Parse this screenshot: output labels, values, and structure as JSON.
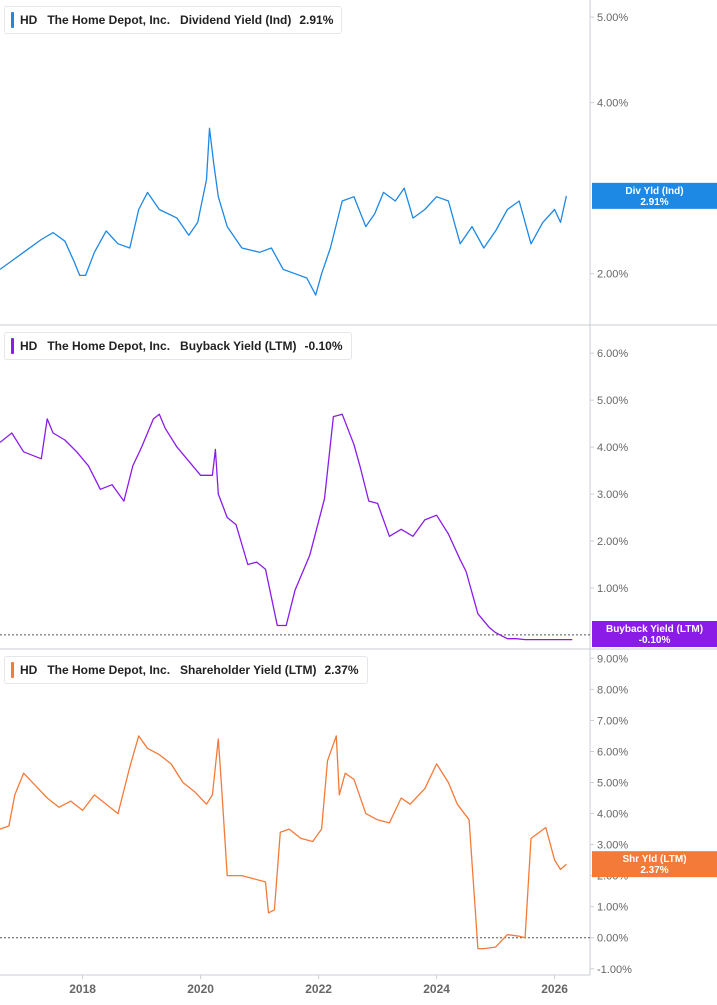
{
  "panels": [
    {
      "ticker": "HD",
      "company": "The Home Depot, Inc.",
      "metric": "Dividend Yield (Ind)",
      "value": "2.91%",
      "color": "#1e88e5",
      "badge": {
        "label": "Div Yld (Ind)",
        "value": "2.91%"
      }
    },
    {
      "ticker": "HD",
      "company": "The Home Depot, Inc.",
      "metric": "Buyback Yield (LTM)",
      "value": "-0.10%",
      "color": "#8b1ce8",
      "badge": {
        "label": "Buyback Yield (LTM)",
        "value": "-0.10%"
      }
    },
    {
      "ticker": "HD",
      "company": "The Home Depot, Inc.",
      "metric": "Shareholder Yield (LTM)",
      "value": "2.37%",
      "color": "#f47a3a",
      "badge": {
        "label": "Shr Yld (LTM)",
        "value": "2.37%"
      }
    }
  ],
  "chart_data": [
    {
      "type": "line",
      "title": "HD The Home Depot, Inc. Dividend Yield (Ind) 2.91%",
      "series": [
        {
          "name": "Dividend Yield (Ind)",
          "color": "#1e88e5",
          "x": [
            2016.6,
            2016.8,
            2017.0,
            2017.3,
            2017.5,
            2017.7,
            2017.85,
            2017.95,
            2018.05,
            2018.2,
            2018.4,
            2018.6,
            2018.8,
            2018.95,
            2019.1,
            2019.3,
            2019.6,
            2019.8,
            2019.95,
            2020.1,
            2020.15,
            2020.22,
            2020.3,
            2020.45,
            2020.7,
            2021.0,
            2021.2,
            2021.4,
            2021.6,
            2021.8,
            2021.95,
            2022.05,
            2022.2,
            2022.4,
            2022.6,
            2022.8,
            2022.95,
            2023.1,
            2023.3,
            2023.45,
            2023.6,
            2023.8,
            2024.0,
            2024.2,
            2024.4,
            2024.6,
            2024.8,
            2025.0,
            2025.2,
            2025.4,
            2025.6,
            2025.8,
            2026.0,
            2026.1,
            2026.2
          ],
          "y": [
            2.05,
            2.15,
            2.25,
            2.4,
            2.48,
            2.38,
            2.15,
            1.98,
            1.98,
            2.25,
            2.5,
            2.35,
            2.3,
            2.75,
            2.95,
            2.75,
            2.65,
            2.45,
            2.6,
            3.1,
            3.7,
            3.3,
            2.9,
            2.55,
            2.3,
            2.25,
            2.3,
            2.05,
            2.0,
            1.95,
            1.75,
            2.0,
            2.3,
            2.85,
            2.9,
            2.55,
            2.7,
            2.95,
            2.85,
            3.0,
            2.65,
            2.75,
            2.9,
            2.85,
            2.35,
            2.55,
            2.3,
            2.5,
            2.75,
            2.85,
            2.35,
            2.6,
            2.75,
            2.6,
            2.91
          ]
        }
      ],
      "ylim": [
        1.4,
        5.2
      ],
      "y_ticks": [
        "2.00%",
        "4.00%",
        "5.00%"
      ],
      "grid": false,
      "legend": "top-left"
    },
    {
      "type": "line",
      "title": "HD The Home Depot, Inc. Buyback Yield (LTM) -0.10%",
      "series": [
        {
          "name": "Buyback Yield (LTM)",
          "color": "#8b1ce8",
          "x": [
            2016.6,
            2016.8,
            2017.0,
            2017.3,
            2017.4,
            2017.5,
            2017.7,
            2017.9,
            2018.1,
            2018.3,
            2018.5,
            2018.7,
            2018.85,
            2019.0,
            2019.2,
            2019.3,
            2019.4,
            2019.6,
            2019.8,
            2020.0,
            2020.2,
            2020.25,
            2020.3,
            2020.45,
            2020.6,
            2020.8,
            2020.95,
            2021.1,
            2021.3,
            2021.45,
            2021.6,
            2021.85,
            2022.1,
            2022.25,
            2022.4,
            2022.6,
            2022.7,
            2022.85,
            2023.0,
            2023.2,
            2023.4,
            2023.6,
            2023.8,
            2024.0,
            2024.2,
            2024.4,
            2024.5,
            2024.7,
            2024.9,
            2025.0,
            2025.2,
            2025.35,
            2025.5,
            2026.0,
            2026.3
          ],
          "y": [
            4.1,
            4.3,
            3.9,
            3.75,
            4.6,
            4.3,
            4.15,
            3.9,
            3.6,
            3.1,
            3.2,
            2.85,
            3.6,
            4.0,
            4.6,
            4.7,
            4.4,
            4.0,
            3.7,
            3.4,
            3.4,
            3.95,
            3.0,
            2.5,
            2.35,
            1.5,
            1.55,
            1.4,
            0.2,
            0.2,
            0.95,
            1.7,
            2.9,
            4.65,
            4.7,
            4.05,
            3.6,
            2.85,
            2.8,
            2.1,
            2.25,
            2.1,
            2.45,
            2.55,
            2.15,
            1.6,
            1.35,
            0.45,
            0.15,
            0.05,
            -0.08,
            -0.08,
            -0.1,
            -0.1,
            -0.1
          ]
        }
      ],
      "ylim": [
        -0.3,
        6.6
      ],
      "y_ticks": [
        "1.00%",
        "2.00%",
        "3.00%",
        "4.00%",
        "5.00%",
        "6.00%"
      ],
      "grid": false,
      "legend": "top-left"
    },
    {
      "type": "line",
      "title": "HD The Home Depot, Inc. Shareholder Yield (LTM) 2.37%",
      "series": [
        {
          "name": "Shareholder Yield (LTM)",
          "color": "#f47a3a",
          "x": [
            2016.6,
            2016.75,
            2016.85,
            2017.0,
            2017.2,
            2017.4,
            2017.6,
            2017.8,
            2018.0,
            2018.2,
            2018.4,
            2018.6,
            2018.8,
            2018.95,
            2019.1,
            2019.3,
            2019.5,
            2019.7,
            2019.9,
            2020.1,
            2020.2,
            2020.3,
            2020.35,
            2020.45,
            2020.7,
            2020.9,
            2021.1,
            2021.15,
            2021.25,
            2021.35,
            2021.5,
            2021.7,
            2021.9,
            2022.05,
            2022.15,
            2022.3,
            2022.35,
            2022.45,
            2022.6,
            2022.8,
            2023.0,
            2023.2,
            2023.4,
            2023.55,
            2023.8,
            2024.0,
            2024.2,
            2024.35,
            2024.55,
            2024.7,
            2024.8,
            2025.0,
            2025.2,
            2025.4,
            2025.5,
            2025.6,
            2025.85,
            2026.0,
            2026.1,
            2026.2
          ],
          "y": [
            3.5,
            3.6,
            4.6,
            5.3,
            4.9,
            4.5,
            4.2,
            4.4,
            4.1,
            4.6,
            4.3,
            4.0,
            5.5,
            6.5,
            6.1,
            5.9,
            5.6,
            5.0,
            4.7,
            4.3,
            4.6,
            6.4,
            5.0,
            2.0,
            2.0,
            1.9,
            1.8,
            0.8,
            0.9,
            3.4,
            3.5,
            3.2,
            3.1,
            3.5,
            5.7,
            6.5,
            4.6,
            5.3,
            5.1,
            4.0,
            3.8,
            3.7,
            4.5,
            4.3,
            4.8,
            5.6,
            5.0,
            4.3,
            3.8,
            -0.35,
            -0.35,
            -0.3,
            0.1,
            0.05,
            0.0,
            3.2,
            3.55,
            2.5,
            2.2,
            2.37
          ]
        }
      ],
      "ylim": [
        -1.2,
        9.3
      ],
      "y_ticks": [
        "-1.00%",
        "0.00%",
        "1.00%",
        "2.00%",
        "3.00%",
        "4.00%",
        "5.00%",
        "6.00%",
        "7.00%",
        "8.00%",
        "9.00%"
      ],
      "grid": false,
      "legend": "top-left"
    }
  ],
  "x_axis": {
    "ticks": [
      "2018",
      "2020",
      "2022",
      "2024",
      "2026"
    ],
    "xlim": [
      2016.6,
      2026.6
    ]
  }
}
